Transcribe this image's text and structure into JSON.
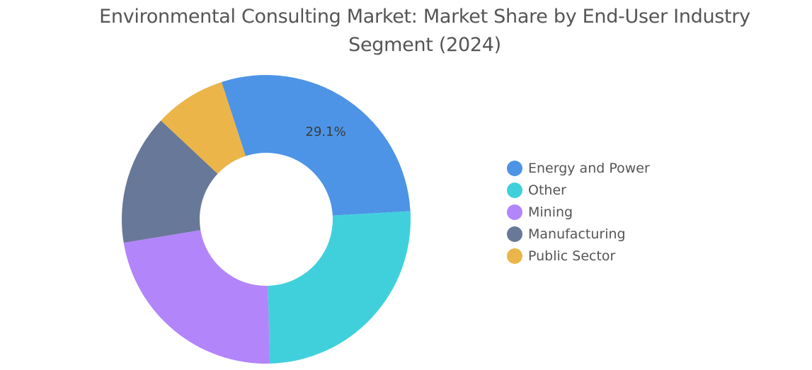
{
  "chart_data": {
    "type": "pie",
    "variant": "donut",
    "title_lines": [
      "Environmental Consulting Market: Market Share by End-User Industry",
      "Segment (2024)"
    ],
    "categories": [
      "Energy and Power",
      "Other",
      "Mining",
      "Manufacturing",
      "Public Sector"
    ],
    "values": [
      29.1,
      25.5,
      22.8,
      14.6,
      8.0
    ],
    "colors": [
      "#4d94e6",
      "#40d0dc",
      "#b385fb",
      "#687898",
      "#ebb54a"
    ],
    "data_labels": [
      "29.1%",
      null,
      null,
      null,
      null
    ],
    "legend_position": "right",
    "start_angle_deg": -18,
    "direction": "clockwise"
  }
}
